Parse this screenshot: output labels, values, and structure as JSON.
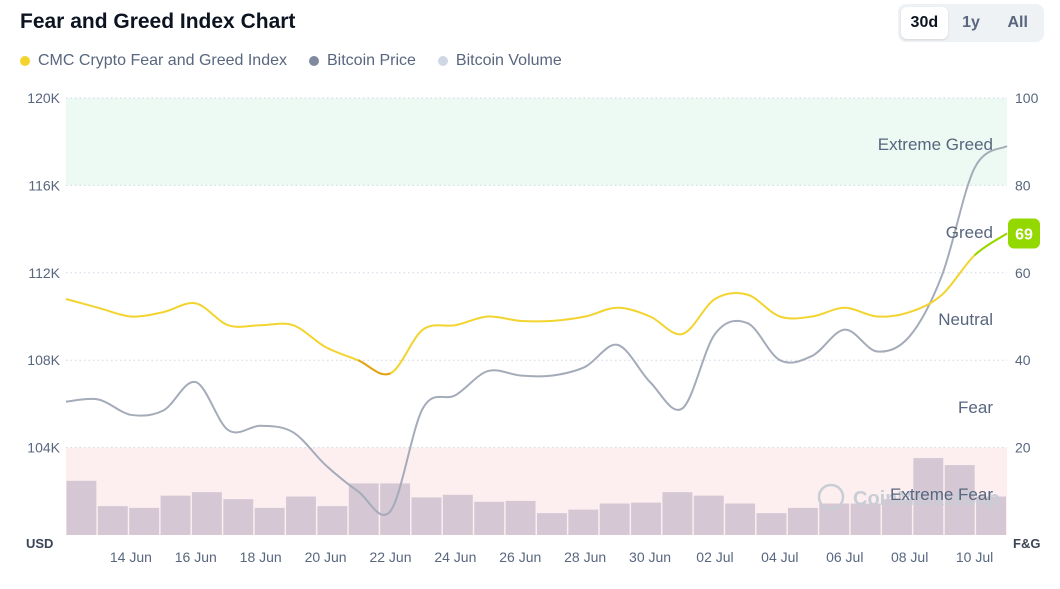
{
  "header": {
    "title": "Fear and Greed Index Chart",
    "ranges": [
      {
        "label": "30d",
        "active": true
      },
      {
        "label": "1y",
        "active": false
      },
      {
        "label": "All",
        "active": false
      }
    ]
  },
  "legend": [
    {
      "label": "CMC Crypto Fear and Greed Index",
      "color": "#f3d42f"
    },
    {
      "label": "Bitcoin Price",
      "color": "#808a9d"
    },
    {
      "label": "Bitcoin Volume",
      "color": "#cfd6e4"
    }
  ],
  "watermark": "CoinMarketCap",
  "chart_data": {
    "type": "line",
    "left_axis": {
      "unit_label": "USD",
      "ticks": [
        "104K",
        "108K",
        "112K",
        "116K",
        "120K"
      ],
      "values": [
        104000,
        108000,
        112000,
        116000,
        120000
      ],
      "range": [
        100000,
        120000
      ]
    },
    "right_axis": {
      "unit_label": "F&G",
      "ticks": [
        "20",
        "40",
        "60",
        "80",
        "100"
      ],
      "values": [
        20,
        40,
        60,
        80,
        100
      ],
      "range": [
        0,
        100
      ]
    },
    "x_ticks": [
      "14 Jun",
      "16 Jun",
      "18 Jun",
      "20 Jun",
      "22 Jun",
      "24 Jun",
      "26 Jun",
      "28 Jun",
      "30 Jun",
      "02 Jul",
      "04 Jul",
      "06 Jul",
      "08 Jul",
      "10 Jul"
    ],
    "x_tick_days": [
      2,
      4,
      6,
      8,
      10,
      12,
      14,
      16,
      18,
      20,
      22,
      24,
      26,
      28
    ],
    "x_days_range": [
      0,
      29
    ],
    "zones": [
      {
        "label": "Extreme Greed",
        "from": 80,
        "to": 100,
        "color": "#edf9f3"
      },
      {
        "label": "Greed",
        "value": 60
      },
      {
        "label": "Neutral",
        "value": 50
      },
      {
        "label": "Fear",
        "value": 30
      },
      {
        "label": "Extreme Fear",
        "from": 0,
        "to": 20,
        "color": "#fdeeef"
      }
    ],
    "current_value": {
      "label": "69",
      "value": 69,
      "color": "#93d900"
    },
    "series": [
      {
        "name": "CMC Crypto Fear and Greed Index",
        "axis": "right",
        "color": "#f3d42f",
        "x": [
          0,
          1,
          2,
          3,
          4,
          5,
          6,
          7,
          8,
          9,
          10,
          11,
          12,
          13,
          14,
          15,
          16,
          17,
          18,
          19,
          20,
          21,
          22,
          23,
          24,
          25,
          26,
          27,
          28,
          29
        ],
        "values": [
          54,
          52,
          50,
          51,
          53,
          48,
          48,
          48,
          43,
          40,
          37,
          47,
          48,
          50,
          49,
          49,
          50,
          52,
          50,
          46,
          54,
          55,
          50,
          50,
          52,
          50,
          51,
          55,
          64,
          69
        ]
      },
      {
        "name": "Bitcoin Price",
        "axis": "left",
        "values": [
          106100,
          106200,
          105500,
          105700,
          107000,
          104800,
          105000,
          104700,
          103200,
          102000,
          101100,
          105800,
          106400,
          107500,
          107300,
          107300,
          107700,
          108700,
          107000,
          105800,
          109200,
          109700,
          108000,
          108200,
          109400,
          108400,
          109100,
          111900,
          116800,
          117800
        ],
        "x": [
          0,
          1,
          2,
          3,
          4,
          5,
          6,
          7,
          8,
          9,
          10,
          11,
          12,
          13,
          14,
          15,
          16,
          17,
          18,
          19,
          20,
          21,
          22,
          23,
          24,
          25,
          26,
          27,
          28,
          29
        ],
        "color": "#a4abb9"
      },
      {
        "name": "Bitcoin Volume",
        "axis": "bars",
        "color": "#d3c4d2",
        "x": [
          0,
          1,
          2,
          3,
          4,
          5,
          6,
          7,
          8,
          9,
          10,
          11,
          12,
          13,
          14,
          15,
          16,
          17,
          18,
          19,
          20,
          21,
          22,
          23,
          24,
          25,
          26,
          27,
          28,
          29
        ],
        "values": [
          0.62,
          0.33,
          0.31,
          0.45,
          0.49,
          0.41,
          0.31,
          0.44,
          0.33,
          0.59,
          0.59,
          0.43,
          0.46,
          0.38,
          0.39,
          0.25,
          0.29,
          0.36,
          0.37,
          0.49,
          0.45,
          0.36,
          0.25,
          0.31,
          0.36,
          0.36,
          0.41,
          0.88,
          0.8,
          0.44
        ]
      }
    ],
    "grid": true,
    "legend_position": "top-left"
  }
}
